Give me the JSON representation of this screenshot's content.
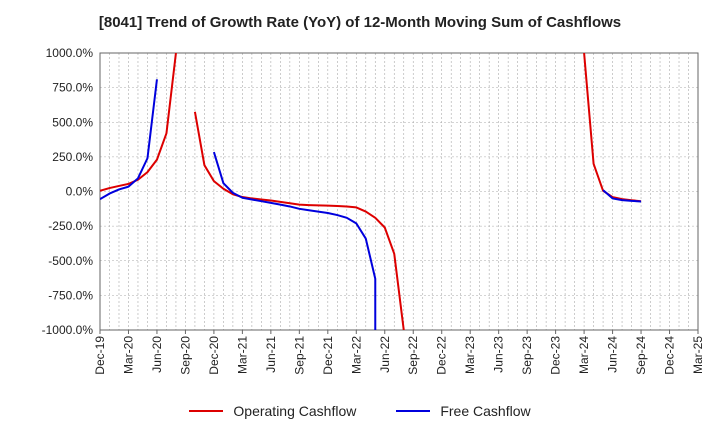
{
  "chart_data": {
    "type": "line",
    "title": "[8041]  Trend of Growth Rate (YoY) of 12-Month Moving Sum of Cashflows",
    "xlabel": "",
    "ylabel": "",
    "ylim": [
      -1000,
      1000
    ],
    "y_ticks": [
      1000,
      750,
      500,
      250,
      0,
      -250,
      -500,
      -750,
      -1000
    ],
    "y_tick_labels": [
      "1000.0%",
      "750.0%",
      "500.0%",
      "250.0%",
      "0.0%",
      "-250.0%",
      "-500.0%",
      "-750.0%",
      "-1000.0%"
    ],
    "x_tick_labels": [
      "Dec-19",
      "Mar-20",
      "Jun-20",
      "Sep-20",
      "Dec-20",
      "Mar-21",
      "Jun-21",
      "Sep-21",
      "Dec-21",
      "Mar-22",
      "Jun-22",
      "Sep-22",
      "Dec-22",
      "Mar-23",
      "Jun-23",
      "Sep-23",
      "Dec-23",
      "Mar-24",
      "Jun-24",
      "Sep-24",
      "Dec-24",
      "Mar-25"
    ],
    "grid": true,
    "legend_position": "bottom",
    "series": [
      {
        "name": "Operating Cashflow",
        "color": "#dd0000",
        "segments": [
          [
            [
              "Dec-19",
              5
            ],
            [
              "Jan-20",
              25
            ],
            [
              "Feb-20",
              40
            ],
            [
              "Mar-20",
              55
            ],
            [
              "Apr-20",
              85
            ],
            [
              "May-20",
              140
            ],
            [
              "Jun-20",
              230
            ],
            [
              "Jul-20",
              420
            ],
            [
              "Aug-20",
              1000
            ]
          ],
          [
            [
              "Oct-20",
              575
            ],
            [
              "Nov-20",
              190
            ],
            [
              "Dec-20",
              75
            ],
            [
              "Jan-21",
              20
            ],
            [
              "Feb-21",
              -20
            ],
            [
              "Mar-21",
              -40
            ],
            [
              "Apr-21",
              -50
            ],
            [
              "May-21",
              -58
            ],
            [
              "Jun-21",
              -65
            ],
            [
              "Jul-21",
              -75
            ],
            [
              "Aug-21",
              -85
            ],
            [
              "Sep-21",
              -95
            ],
            [
              "Oct-21",
              -98
            ],
            [
              "Nov-21",
              -100
            ],
            [
              "Dec-21",
              -102
            ],
            [
              "Jan-22",
              -105
            ],
            [
              "Feb-22",
              -108
            ],
            [
              "Mar-22",
              -115
            ],
            [
              "Apr-22",
              -145
            ],
            [
              "May-22",
              -190
            ],
            [
              "Jun-22",
              -260
            ],
            [
              "Jul-22",
              -450
            ],
            [
              "Aug-22",
              -1000
            ]
          ],
          [
            [
              "Mar-24",
              1000
            ],
            [
              "Apr-24",
              200
            ],
            [
              "May-24",
              5
            ],
            [
              "Jun-24",
              -40
            ],
            [
              "Jul-24",
              -55
            ],
            [
              "Aug-24",
              -63
            ],
            [
              "Sep-24",
              -70
            ]
          ]
        ]
      },
      {
        "name": "Free Cashflow",
        "color": "#0000dd",
        "segments": [
          [
            [
              "Dec-19",
              -55
            ],
            [
              "Jan-20",
              -15
            ],
            [
              "Feb-20",
              15
            ],
            [
              "Mar-20",
              35
            ],
            [
              "Apr-20",
              95
            ],
            [
              "May-20",
              240
            ],
            [
              "Jun-20",
              810
            ]
          ],
          [
            [
              "Dec-20",
              285
            ],
            [
              "Jan-21",
              60
            ],
            [
              "Feb-21",
              -10
            ],
            [
              "Mar-21",
              -45
            ],
            [
              "Apr-21",
              -58
            ],
            [
              "May-21",
              -70
            ],
            [
              "Jun-21",
              -82
            ],
            [
              "Jul-21",
              -95
            ],
            [
              "Aug-21",
              -108
            ],
            [
              "Sep-21",
              -125
            ],
            [
              "Oct-21",
              -135
            ],
            [
              "Nov-21",
              -145
            ],
            [
              "Dec-21",
              -155
            ],
            [
              "Jan-22",
              -170
            ],
            [
              "Feb-22",
              -190
            ],
            [
              "Mar-22",
              -230
            ],
            [
              "Apr-22",
              -340
            ],
            [
              "May-22",
              -630
            ],
            [
              "May-22",
              -1000
            ]
          ],
          [
            [
              "May-24",
              10
            ],
            [
              "Jun-24",
              -50
            ],
            [
              "Jul-24",
              -62
            ],
            [
              "Aug-24",
              -68
            ],
            [
              "Sep-24",
              -72
            ]
          ]
        ]
      }
    ]
  }
}
